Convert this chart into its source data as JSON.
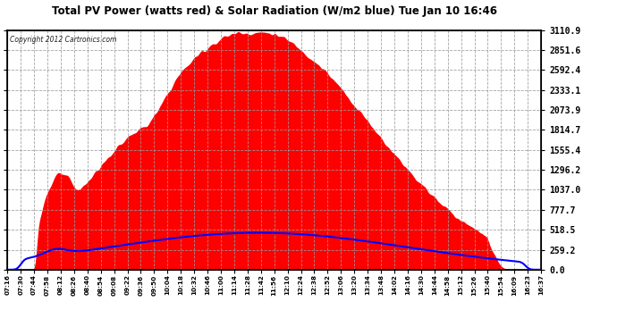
{
  "title": "Total PV Power (watts red) & Solar Radiation (W/m2 blue) Tue Jan 10 16:46",
  "copyright": "Copyright 2012 Cartronics.com",
  "y_max": 3110.9,
  "y_ticks": [
    0.0,
    259.2,
    518.5,
    777.7,
    1037.0,
    1296.2,
    1555.4,
    1814.7,
    2073.9,
    2333.1,
    2592.4,
    2851.6,
    3110.9
  ],
  "bg_color": "#ffffff",
  "plot_bg_color": "#ffffff",
  "grid_color": "#999999",
  "fill_color": "#ff0000",
  "line_color": "#0000ff",
  "title_color": "#000000",
  "x_labels": [
    "07:16",
    "07:30",
    "07:44",
    "07:58",
    "08:12",
    "08:26",
    "08:40",
    "08:54",
    "09:08",
    "09:22",
    "09:36",
    "09:50",
    "10:04",
    "10:18",
    "10:32",
    "10:46",
    "11:00",
    "11:14",
    "11:28",
    "11:42",
    "11:56",
    "12:10",
    "12:24",
    "12:38",
    "12:52",
    "13:06",
    "13:20",
    "13:34",
    "13:48",
    "14:02",
    "14:16",
    "14:30",
    "14:44",
    "14:58",
    "15:12",
    "15:26",
    "15:40",
    "15:54",
    "16:09",
    "16:23",
    "16:37"
  ],
  "solar_rad_max": 480,
  "pv_max": 3110.9
}
